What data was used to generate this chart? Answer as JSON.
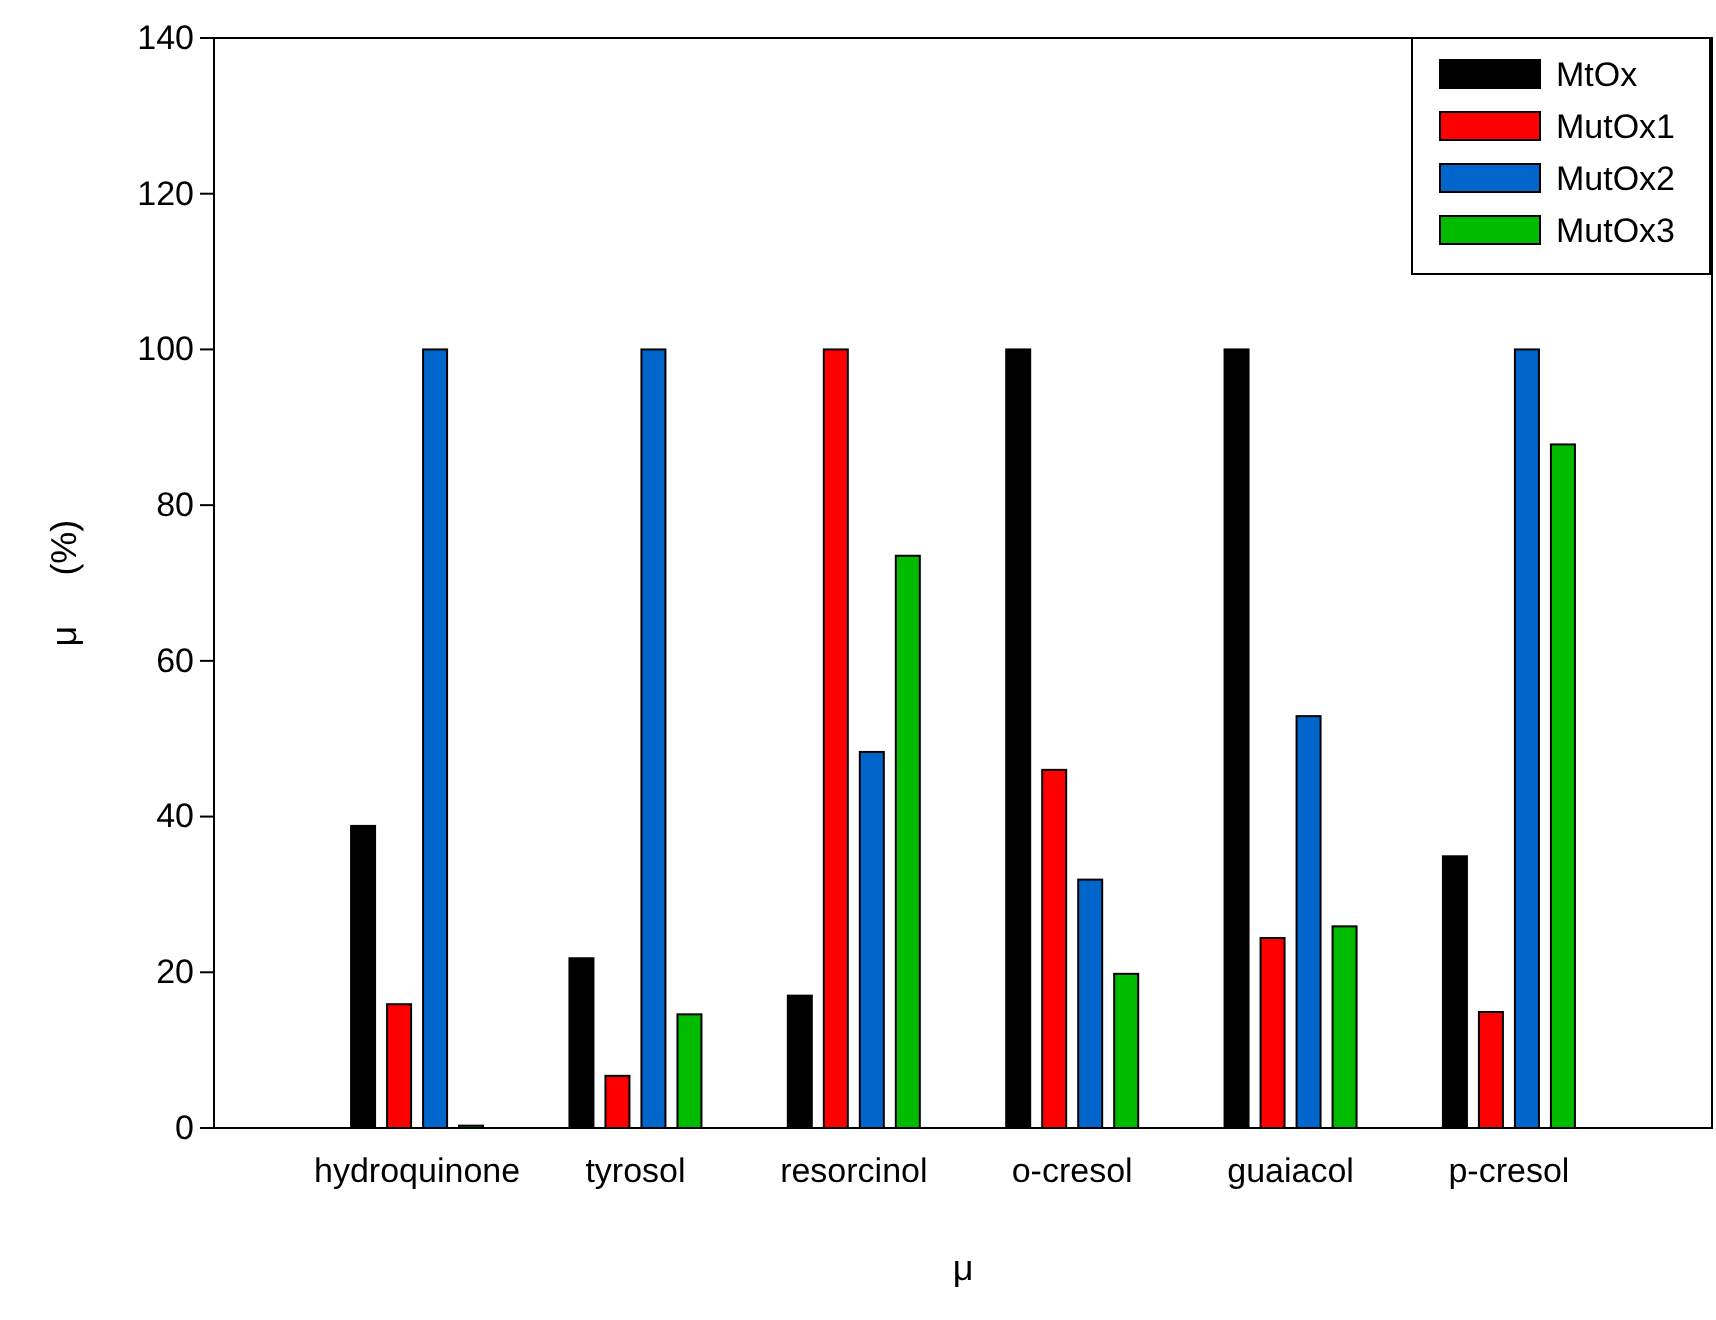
{
  "chart_data": {
    "type": "bar",
    "xlabel": "μ",
    "ylabel": "μ     (%)",
    "categories": [
      "hydroquinone",
      "tyrosol",
      "resorcinol",
      "o-cresol",
      "guaiacol",
      "p-cresol"
    ],
    "series": [
      {
        "name": "MtOx",
        "color": "#000000",
        "values": [
          38.8,
          21.8,
          17,
          100,
          100,
          34.9
        ]
      },
      {
        "name": "MutOx1",
        "color": "#ff0000",
        "values": [
          15.9,
          6.7,
          100,
          46,
          24.4,
          14.9
        ]
      },
      {
        "name": "MutOx2",
        "color": "#0066cc",
        "values": [
          100,
          100,
          48.3,
          31.9,
          52.9,
          100
        ]
      },
      {
        "name": "MutOx3",
        "color": "#00bb00",
        "values": [
          0.3,
          14.6,
          73.5,
          19.8,
          25.9,
          87.8
        ]
      }
    ],
    "ylim": [
      0,
      140
    ],
    "yticks": [
      0,
      20,
      40,
      60,
      80,
      100,
      120,
      140
    ],
    "legend": "top right"
  }
}
